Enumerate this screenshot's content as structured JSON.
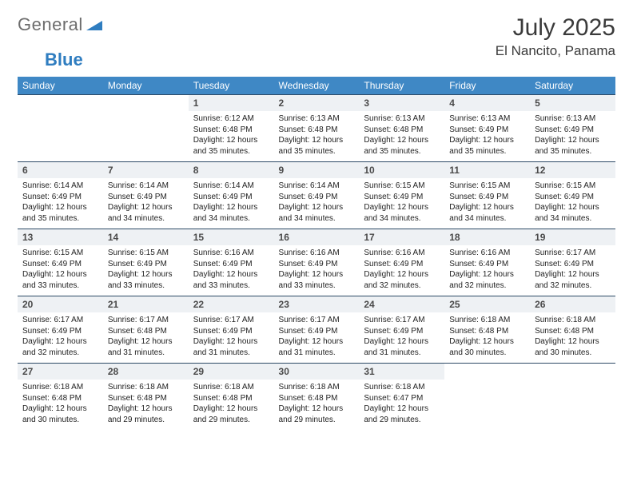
{
  "logo": {
    "text_gray": "General",
    "text_blue": "Blue"
  },
  "title": "July 2025",
  "location": "El Nancito, Panama",
  "colors": {
    "header_bg": "#3f88c5",
    "header_fg": "#ffffff",
    "daynum_bg": "#eef1f4",
    "rule": "#2d4a66",
    "logo_gray": "#6d6d6d",
    "logo_blue": "#2f7dc0"
  },
  "weekdays": [
    "Sunday",
    "Monday",
    "Tuesday",
    "Wednesday",
    "Thursday",
    "Friday",
    "Saturday"
  ],
  "weeks": [
    [
      null,
      null,
      {
        "n": "1",
        "sunrise": "6:12 AM",
        "sunset": "6:48 PM",
        "daylight": "12 hours and 35 minutes."
      },
      {
        "n": "2",
        "sunrise": "6:13 AM",
        "sunset": "6:48 PM",
        "daylight": "12 hours and 35 minutes."
      },
      {
        "n": "3",
        "sunrise": "6:13 AM",
        "sunset": "6:48 PM",
        "daylight": "12 hours and 35 minutes."
      },
      {
        "n": "4",
        "sunrise": "6:13 AM",
        "sunset": "6:49 PM",
        "daylight": "12 hours and 35 minutes."
      },
      {
        "n": "5",
        "sunrise": "6:13 AM",
        "sunset": "6:49 PM",
        "daylight": "12 hours and 35 minutes."
      }
    ],
    [
      {
        "n": "6",
        "sunrise": "6:14 AM",
        "sunset": "6:49 PM",
        "daylight": "12 hours and 35 minutes."
      },
      {
        "n": "7",
        "sunrise": "6:14 AM",
        "sunset": "6:49 PM",
        "daylight": "12 hours and 34 minutes."
      },
      {
        "n": "8",
        "sunrise": "6:14 AM",
        "sunset": "6:49 PM",
        "daylight": "12 hours and 34 minutes."
      },
      {
        "n": "9",
        "sunrise": "6:14 AM",
        "sunset": "6:49 PM",
        "daylight": "12 hours and 34 minutes."
      },
      {
        "n": "10",
        "sunrise": "6:15 AM",
        "sunset": "6:49 PM",
        "daylight": "12 hours and 34 minutes."
      },
      {
        "n": "11",
        "sunrise": "6:15 AM",
        "sunset": "6:49 PM",
        "daylight": "12 hours and 34 minutes."
      },
      {
        "n": "12",
        "sunrise": "6:15 AM",
        "sunset": "6:49 PM",
        "daylight": "12 hours and 34 minutes."
      }
    ],
    [
      {
        "n": "13",
        "sunrise": "6:15 AM",
        "sunset": "6:49 PM",
        "daylight": "12 hours and 33 minutes."
      },
      {
        "n": "14",
        "sunrise": "6:15 AM",
        "sunset": "6:49 PM",
        "daylight": "12 hours and 33 minutes."
      },
      {
        "n": "15",
        "sunrise": "6:16 AM",
        "sunset": "6:49 PM",
        "daylight": "12 hours and 33 minutes."
      },
      {
        "n": "16",
        "sunrise": "6:16 AM",
        "sunset": "6:49 PM",
        "daylight": "12 hours and 33 minutes."
      },
      {
        "n": "17",
        "sunrise": "6:16 AM",
        "sunset": "6:49 PM",
        "daylight": "12 hours and 32 minutes."
      },
      {
        "n": "18",
        "sunrise": "6:16 AM",
        "sunset": "6:49 PM",
        "daylight": "12 hours and 32 minutes."
      },
      {
        "n": "19",
        "sunrise": "6:17 AM",
        "sunset": "6:49 PM",
        "daylight": "12 hours and 32 minutes."
      }
    ],
    [
      {
        "n": "20",
        "sunrise": "6:17 AM",
        "sunset": "6:49 PM",
        "daylight": "12 hours and 32 minutes."
      },
      {
        "n": "21",
        "sunrise": "6:17 AM",
        "sunset": "6:48 PM",
        "daylight": "12 hours and 31 minutes."
      },
      {
        "n": "22",
        "sunrise": "6:17 AM",
        "sunset": "6:49 PM",
        "daylight": "12 hours and 31 minutes."
      },
      {
        "n": "23",
        "sunrise": "6:17 AM",
        "sunset": "6:49 PM",
        "daylight": "12 hours and 31 minutes."
      },
      {
        "n": "24",
        "sunrise": "6:17 AM",
        "sunset": "6:49 PM",
        "daylight": "12 hours and 31 minutes."
      },
      {
        "n": "25",
        "sunrise": "6:18 AM",
        "sunset": "6:48 PM",
        "daylight": "12 hours and 30 minutes."
      },
      {
        "n": "26",
        "sunrise": "6:18 AM",
        "sunset": "6:48 PM",
        "daylight": "12 hours and 30 minutes."
      }
    ],
    [
      {
        "n": "27",
        "sunrise": "6:18 AM",
        "sunset": "6:48 PM",
        "daylight": "12 hours and 30 minutes."
      },
      {
        "n": "28",
        "sunrise": "6:18 AM",
        "sunset": "6:48 PM",
        "daylight": "12 hours and 29 minutes."
      },
      {
        "n": "29",
        "sunrise": "6:18 AM",
        "sunset": "6:48 PM",
        "daylight": "12 hours and 29 minutes."
      },
      {
        "n": "30",
        "sunrise": "6:18 AM",
        "sunset": "6:48 PM",
        "daylight": "12 hours and 29 minutes."
      },
      {
        "n": "31",
        "sunrise": "6:18 AM",
        "sunset": "6:47 PM",
        "daylight": "12 hours and 29 minutes."
      },
      null,
      null
    ]
  ],
  "labels": {
    "sunrise": "Sunrise:",
    "sunset": "Sunset:",
    "daylight": "Daylight:"
  }
}
